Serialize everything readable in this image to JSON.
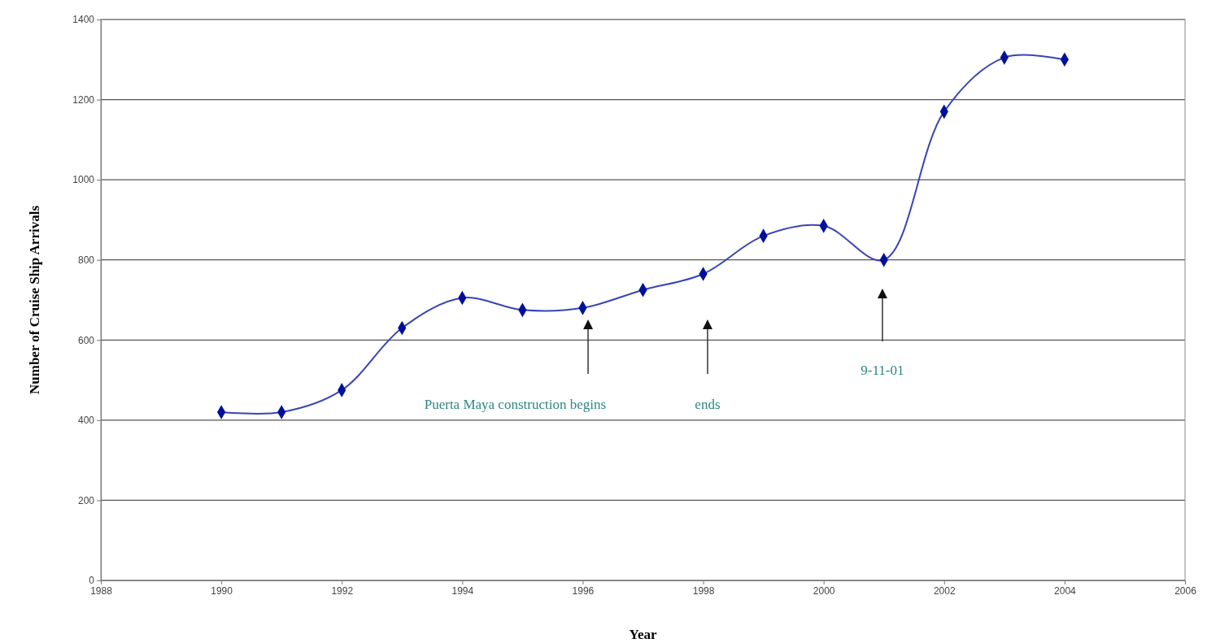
{
  "chart_data": {
    "type": "line",
    "xlabel": "Year",
    "ylabel": "Number of Cruise Ship Arrivals",
    "x": [
      1990,
      1991,
      1992,
      1993,
      1994,
      1995,
      1996,
      1997,
      1998,
      1999,
      2000,
      2001,
      2002,
      2003,
      2004
    ],
    "series": [
      {
        "color": "#3a44b4",
        "values": [
          420,
          420,
          475,
          630,
          705,
          675,
          680,
          725,
          765,
          860,
          885,
          800,
          1170,
          1305,
          1300
        ]
      }
    ],
    "xlim": [
      1988,
      2006
    ],
    "xticks": [
      1988,
      1990,
      1992,
      1994,
      1996,
      1998,
      2000,
      2002,
      2004,
      2006
    ],
    "ylim": [
      0,
      1400
    ],
    "yticks": [
      0,
      200,
      400,
      600,
      800,
      1000,
      1200,
      1400
    ],
    "grid": "y",
    "marker": "diamond",
    "line_style": "solid",
    "annotations": [
      "Puerta Maya construction begins",
      "ends",
      "9-11-01"
    ]
  }
}
